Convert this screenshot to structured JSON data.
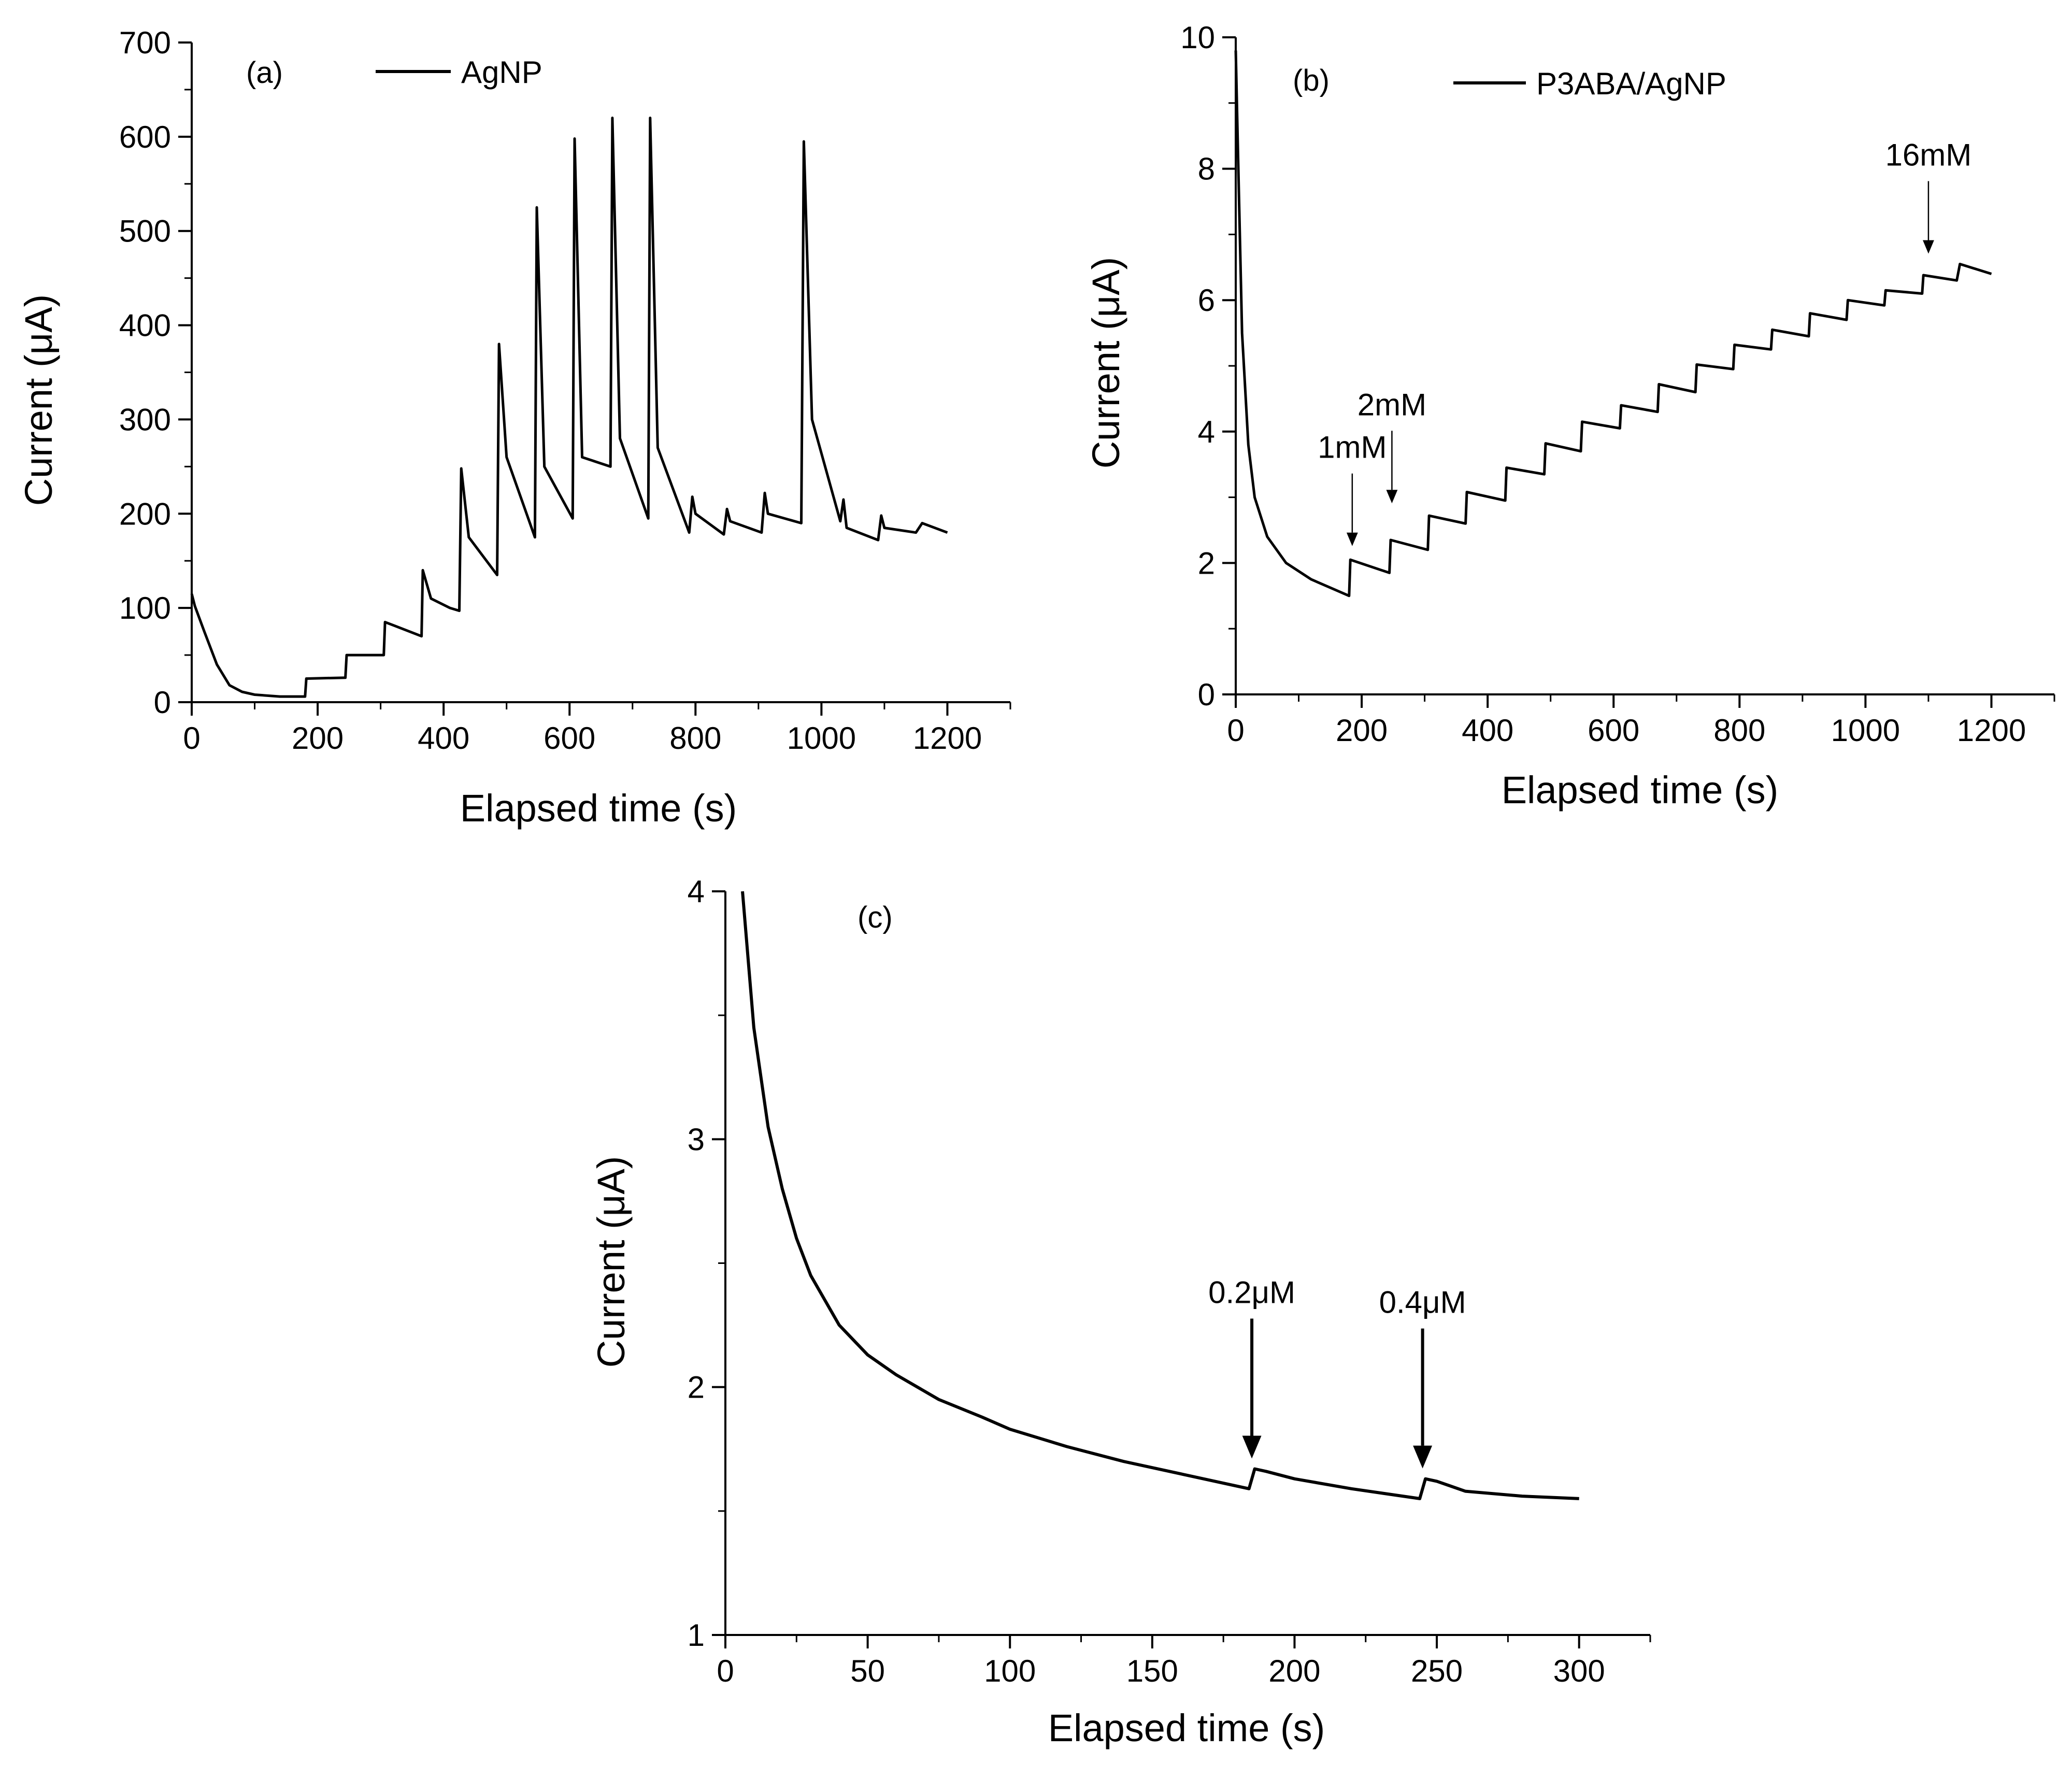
{
  "chart_data": [
    {
      "type": "line",
      "panel": "(a)",
      "xlabel": "Elapsed time (s)",
      "ylabel": "Current (μA)",
      "xlim": [
        0,
        1300
      ],
      "ylim": [
        0,
        700
      ],
      "xticks": [
        0,
        200,
        400,
        600,
        800,
        1000,
        1200
      ],
      "yticks": [
        0,
        100,
        200,
        300,
        400,
        500,
        600,
        700
      ],
      "legend": "AgNP",
      "legend_position": "top",
      "series": [
        {
          "name": "AgNP",
          "x": [
            0,
            5,
            20,
            40,
            60,
            80,
            100,
            140,
            180,
            182,
            244,
            246,
            305,
            307,
            365,
            367,
            380,
            410,
            425,
            428,
            440,
            485,
            488,
            500,
            545,
            548,
            560,
            605,
            608,
            620,
            665,
            668,
            680,
            725,
            728,
            740,
            790,
            795,
            800,
            845,
            850,
            855,
            905,
            910,
            915,
            968,
            972,
            985,
            1030,
            1035,
            1040,
            1090,
            1095,
            1100,
            1150,
            1160,
            1200
          ],
          "values": [
            115,
            102,
            75,
            40,
            18,
            11,
            8,
            6,
            6,
            25,
            26,
            50,
            50,
            85,
            70,
            140,
            110,
            100,
            97,
            248,
            175,
            135,
            380,
            260,
            175,
            525,
            250,
            195,
            598,
            260,
            250,
            620,
            280,
            195,
            620,
            270,
            180,
            218,
            200,
            178,
            205,
            192,
            180,
            222,
            200,
            190,
            595,
            300,
            192,
            215,
            185,
            172,
            198,
            185,
            180,
            190,
            180
          ]
        }
      ]
    },
    {
      "type": "line",
      "panel": "(b)",
      "xlabel": "Elapsed time (s)",
      "ylabel": "Current (μA)",
      "xlim": [
        0,
        1300
      ],
      "ylim": [
        0,
        10
      ],
      "xticks": [
        0,
        200,
        400,
        600,
        800,
        1000,
        1200
      ],
      "yticks": [
        0,
        2,
        4,
        6,
        8,
        10
      ],
      "legend": "P3ABA/AgNP",
      "legend_position": "top",
      "series": [
        {
          "name": "P3ABA/AgNP",
          "x": [
            0,
            3,
            10,
            20,
            30,
            50,
            80,
            120,
            180,
            182,
            244,
            246,
            305,
            307,
            365,
            367,
            428,
            430,
            490,
            492,
            548,
            550,
            610,
            612,
            670,
            672,
            730,
            732,
            790,
            792,
            850,
            852,
            910,
            912,
            970,
            972,
            1030,
            1032,
            1090,
            1092,
            1145,
            1150,
            1200
          ],
          "values": [
            9.8,
            8.5,
            5.5,
            3.8,
            3.0,
            2.4,
            2.0,
            1.75,
            1.5,
            2.05,
            1.85,
            2.35,
            2.2,
            2.72,
            2.6,
            3.08,
            2.95,
            3.45,
            3.35,
            3.82,
            3.7,
            4.15,
            4.05,
            4.4,
            4.3,
            4.72,
            4.6,
            5.02,
            4.95,
            5.32,
            5.25,
            5.55,
            5.45,
            5.8,
            5.7,
            6.0,
            5.92,
            6.15,
            6.1,
            6.38,
            6.3,
            6.55,
            6.4
          ]
        }
      ],
      "annotations": [
        {
          "text": "1mM",
          "x": 185,
          "y": 2.1
        },
        {
          "text": "2mM",
          "x": 248,
          "y": 2.75
        },
        {
          "text": "16mM",
          "x": 1100,
          "y": 6.55
        }
      ]
    },
    {
      "type": "line",
      "panel": "(c)",
      "xlabel": "Elapsed time (s)",
      "ylabel": "Current (μA)",
      "xlim": [
        0,
        325
      ],
      "ylim": [
        1,
        4
      ],
      "xticks": [
        0,
        50,
        100,
        150,
        200,
        250,
        300
      ],
      "yticks": [
        1,
        2,
        3,
        4
      ],
      "series": [
        {
          "name": "current",
          "x": [
            6,
            10,
            15,
            20,
            25,
            30,
            40,
            50,
            60,
            75,
            90,
            100,
            120,
            140,
            160,
            184,
            186,
            190,
            200,
            220,
            244,
            246,
            250,
            260,
            280,
            300
          ],
          "values": [
            4.0,
            3.45,
            3.05,
            2.8,
            2.6,
            2.45,
            2.25,
            2.13,
            2.05,
            1.95,
            1.88,
            1.83,
            1.76,
            1.7,
            1.65,
            1.59,
            1.67,
            1.66,
            1.63,
            1.59,
            1.55,
            1.63,
            1.62,
            1.58,
            1.56,
            1.55
          ]
        }
      ],
      "annotations": [
        {
          "text": "0.2μM",
          "x": 185,
          "y": 1.67
        },
        {
          "text": "0.4μM",
          "x": 245,
          "y": 1.63
        }
      ]
    }
  ]
}
